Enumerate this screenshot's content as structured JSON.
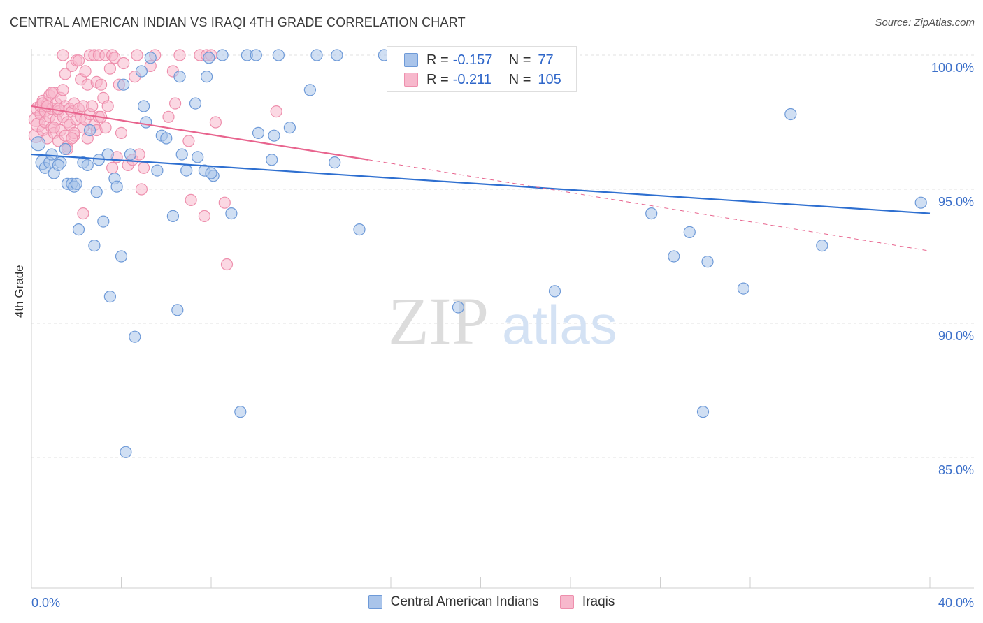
{
  "title": "CENTRAL AMERICAN INDIAN VS IRAQI 4TH GRADE CORRELATION CHART",
  "source": "Source: ZipAtlas.com",
  "watermark": {
    "zip": "ZIP",
    "atlas": "atlas"
  },
  "colors": {
    "blue_fill": "#a9c4ea",
    "blue_stroke": "#6e9ad8",
    "blue_line": "#2e6fd0",
    "pink_fill": "#f7b8cc",
    "pink_stroke": "#ee8fad",
    "pink_line": "#e8648e",
    "tick_label": "#3b6fc9",
    "grid": "#e2e2e2"
  },
  "legend_top": [
    {
      "r_label": "R = ",
      "r_value": "-0.157",
      "n_label": "N = ",
      "n_value": "77"
    },
    {
      "r_label": "R = ",
      "r_value": "-0.211",
      "n_label": "N = ",
      "n_value": "105"
    }
  ],
  "chart_data": {
    "type": "scatter",
    "title": "CENTRAL AMERICAN INDIAN VS IRAQI 4TH GRADE CORRELATION CHART",
    "xlabel": "",
    "ylabel": "4th Grade",
    "xlim": [
      0,
      40
    ],
    "ylim": [
      80.5,
      100.8
    ],
    "x_tick_labels": [
      "0.0%",
      "40.0%"
    ],
    "y_ticks": [
      85,
      90,
      95,
      100
    ],
    "y_tick_labels": [
      "85.0%",
      "90.0%",
      "95.0%",
      "100.0%"
    ],
    "grid": true,
    "legend_position": "bottom",
    "series": [
      {
        "name": "Central American Indians",
        "r": -0.157,
        "n": 77,
        "trend": {
          "x": [
            0,
            40
          ],
          "y": [
            96.3,
            94.1
          ]
        },
        "points": [
          [
            0.3,
            96.7
          ],
          [
            0.5,
            96.0
          ],
          [
            0.6,
            95.8
          ],
          [
            0.8,
            96.0
          ],
          [
            0.9,
            96.3
          ],
          [
            1.0,
            95.6
          ],
          [
            1.3,
            96.0
          ],
          [
            1.5,
            96.5
          ],
          [
            1.6,
            95.2
          ],
          [
            1.8,
            95.2
          ],
          [
            1.9,
            95.1
          ],
          [
            2.1,
            93.5
          ],
          [
            2.3,
            96.0
          ],
          [
            2.5,
            95.9
          ],
          [
            2.6,
            97.2
          ],
          [
            2.8,
            92.9
          ],
          [
            2.9,
            94.9
          ],
          [
            3.2,
            93.8
          ],
          [
            3.4,
            96.3
          ],
          [
            3.5,
            91.0
          ],
          [
            3.7,
            95.4
          ],
          [
            3.8,
            95.1
          ],
          [
            4.0,
            92.5
          ],
          [
            4.1,
            98.9
          ],
          [
            4.4,
            96.3
          ],
          [
            4.6,
            89.5
          ],
          [
            4.9,
            99.4
          ],
          [
            5.0,
            98.1
          ],
          [
            5.1,
            97.5
          ],
          [
            5.3,
            99.9
          ],
          [
            5.6,
            95.7
          ],
          [
            5.8,
            97.0
          ],
          [
            6.0,
            96.9
          ],
          [
            6.3,
            94.0
          ],
          [
            6.5,
            90.5
          ],
          [
            6.6,
            99.2
          ],
          [
            6.7,
            96.3
          ],
          [
            6.9,
            95.7
          ],
          [
            7.3,
            98.2
          ],
          [
            7.4,
            96.2
          ],
          [
            7.7,
            95.7
          ],
          [
            7.8,
            99.2
          ],
          [
            7.9,
            99.9
          ],
          [
            8.1,
            95.5
          ],
          [
            8.5,
            100.0
          ],
          [
            8.9,
            94.1
          ],
          [
            9.3,
            86.7
          ],
          [
            9.6,
            100.0
          ],
          [
            10.0,
            100.0
          ],
          [
            10.1,
            97.1
          ],
          [
            10.7,
            96.1
          ],
          [
            10.8,
            97.0
          ],
          [
            11.0,
            100.0
          ],
          [
            11.5,
            97.3
          ],
          [
            12.4,
            98.7
          ],
          [
            12.7,
            100.0
          ],
          [
            13.5,
            96.0
          ],
          [
            13.6,
            100.0
          ],
          [
            14.6,
            93.5
          ],
          [
            15.7,
            100.0
          ],
          [
            18.9,
            100.0
          ],
          [
            19.0,
            90.6
          ],
          [
            23.3,
            91.2
          ],
          [
            27.6,
            94.1
          ],
          [
            28.6,
            92.5
          ],
          [
            29.3,
            93.4
          ],
          [
            29.9,
            86.7
          ],
          [
            30.1,
            92.3
          ],
          [
            31.7,
            91.3
          ],
          [
            33.8,
            97.8
          ],
          [
            35.2,
            92.9
          ],
          [
            39.6,
            94.5
          ],
          [
            1.2,
            95.9
          ],
          [
            2.0,
            95.2
          ],
          [
            3.0,
            96.1
          ],
          [
            4.2,
            85.2
          ],
          [
            8.0,
            95.6
          ]
        ]
      },
      {
        "name": "Iraqis",
        "r": -0.211,
        "n": 105,
        "trend": {
          "x": [
            0,
            15
          ],
          "y": [
            98.1,
            96.1
          ]
        },
        "trend_dashed": {
          "x": [
            15,
            40
          ],
          "y": [
            96.1,
            92.7
          ]
        },
        "points": [
          [
            0.2,
            97.0
          ],
          [
            0.2,
            97.6
          ],
          [
            0.3,
            98.0
          ],
          [
            0.3,
            97.4
          ],
          [
            0.4,
            97.8
          ],
          [
            0.4,
            98.1
          ],
          [
            0.5,
            97.2
          ],
          [
            0.5,
            98.3
          ],
          [
            0.6,
            97.9
          ],
          [
            0.6,
            97.5
          ],
          [
            0.7,
            98.2
          ],
          [
            0.7,
            96.9
          ],
          [
            0.8,
            98.5
          ],
          [
            0.8,
            97.7
          ],
          [
            0.9,
            97.3
          ],
          [
            0.9,
            98.0
          ],
          [
            1.0,
            98.6
          ],
          [
            1.0,
            97.1
          ],
          [
            1.1,
            97.6
          ],
          [
            1.1,
            98.2
          ],
          [
            1.2,
            96.8
          ],
          [
            1.2,
            97.9
          ],
          [
            1.3,
            98.4
          ],
          [
            1.3,
            97.2
          ],
          [
            1.4,
            97.7
          ],
          [
            1.4,
            98.7
          ],
          [
            1.5,
            97.0
          ],
          [
            1.5,
            98.1
          ],
          [
            1.6,
            96.6
          ],
          [
            1.6,
            97.5
          ],
          [
            1.7,
            98.0
          ],
          [
            1.7,
            97.4
          ],
          [
            1.8,
            97.9
          ],
          [
            1.8,
            99.6
          ],
          [
            1.9,
            97.0
          ],
          [
            1.9,
            98.2
          ],
          [
            2.0,
            99.8
          ],
          [
            2.0,
            97.6
          ],
          [
            2.1,
            98.0
          ],
          [
            2.2,
            97.7
          ],
          [
            2.2,
            99.1
          ],
          [
            2.3,
            97.3
          ],
          [
            2.3,
            98.1
          ],
          [
            2.4,
            99.4
          ],
          [
            2.4,
            97.6
          ],
          [
            2.5,
            98.9
          ],
          [
            2.6,
            100.0
          ],
          [
            2.6,
            97.8
          ],
          [
            2.7,
            98.1
          ],
          [
            2.8,
            100.0
          ],
          [
            2.8,
            97.4
          ],
          [
            2.9,
            99.0
          ],
          [
            3.0,
            100.0
          ],
          [
            3.0,
            97.7
          ],
          [
            3.1,
            98.9
          ],
          [
            3.2,
            98.4
          ],
          [
            3.3,
            100.0
          ],
          [
            3.4,
            98.1
          ],
          [
            3.5,
            99.5
          ],
          [
            3.6,
            100.0
          ],
          [
            3.6,
            95.8
          ],
          [
            3.7,
            99.9
          ],
          [
            3.8,
            96.2
          ],
          [
            3.9,
            98.9
          ],
          [
            4.0,
            97.1
          ],
          [
            4.1,
            99.7
          ],
          [
            4.3,
            95.9
          ],
          [
            4.5,
            96.1
          ],
          [
            4.6,
            99.2
          ],
          [
            4.7,
            100.0
          ],
          [
            4.8,
            96.3
          ],
          [
            4.9,
            95.0
          ],
          [
            5.0,
            95.8
          ],
          [
            5.3,
            99.6
          ],
          [
            5.5,
            100.0
          ],
          [
            6.1,
            97.7
          ],
          [
            6.3,
            99.4
          ],
          [
            6.4,
            98.2
          ],
          [
            6.6,
            100.0
          ],
          [
            7.0,
            96.8
          ],
          [
            7.1,
            94.6
          ],
          [
            7.5,
            100.0
          ],
          [
            7.7,
            94.0
          ],
          [
            7.8,
            100.0
          ],
          [
            8.0,
            100.0
          ],
          [
            8.2,
            97.5
          ],
          [
            8.6,
            94.5
          ],
          [
            8.7,
            92.2
          ],
          [
            10.9,
            97.9
          ],
          [
            2.3,
            94.1
          ],
          [
            1.9,
            97.1
          ],
          [
            1.6,
            96.5
          ],
          [
            1.2,
            98.0
          ],
          [
            0.9,
            98.6
          ],
          [
            1.4,
            100.0
          ],
          [
            2.1,
            99.8
          ],
          [
            1.5,
            99.3
          ],
          [
            0.5,
            98.2
          ],
          [
            2.5,
            96.9
          ],
          [
            2.9,
            97.2
          ],
          [
            3.1,
            97.7
          ],
          [
            3.3,
            97.3
          ],
          [
            0.7,
            98.1
          ],
          [
            1.0,
            97.3
          ],
          [
            1.8,
            96.9
          ]
        ]
      }
    ]
  },
  "legend_bottom": [
    "Central American Indians",
    "Iraqis"
  ]
}
